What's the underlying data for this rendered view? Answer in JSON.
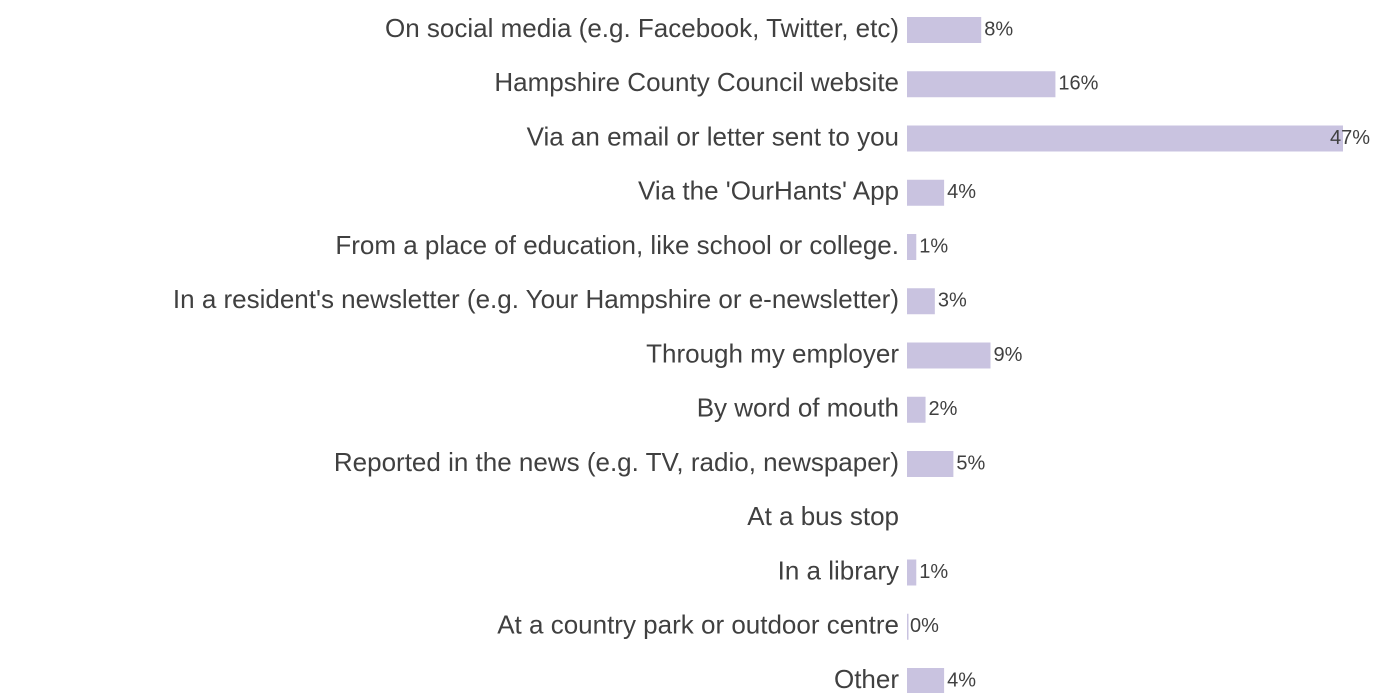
{
  "chart_data": {
    "type": "bar",
    "orientation": "horizontal",
    "color": "#c9c3e0",
    "categories": [
      "On social media (e.g. Facebook, Twitter, etc)",
      "Hampshire County Council website",
      "Via an email or letter sent to you",
      "Via the 'OurHants' App",
      "From a place of education, like school or college.",
      "In a resident's newsletter (e.g. Your Hampshire or e-newsletter)",
      "Through my employer",
      "By word of mouth",
      "Reported in the news (e.g. TV, radio, newspaper)",
      "At a bus stop",
      "In a library",
      "At a country park or outdoor centre",
      "Other"
    ],
    "values": [
      8,
      16,
      47,
      4,
      1,
      3,
      9,
      2,
      5,
      null,
      1,
      0,
      4
    ],
    "value_labels": [
      "8%",
      "16%",
      "47%",
      "4%",
      "1%",
      "3%",
      "9%",
      "2%",
      "5%",
      null,
      "1%",
      "0%",
      "4%"
    ]
  }
}
